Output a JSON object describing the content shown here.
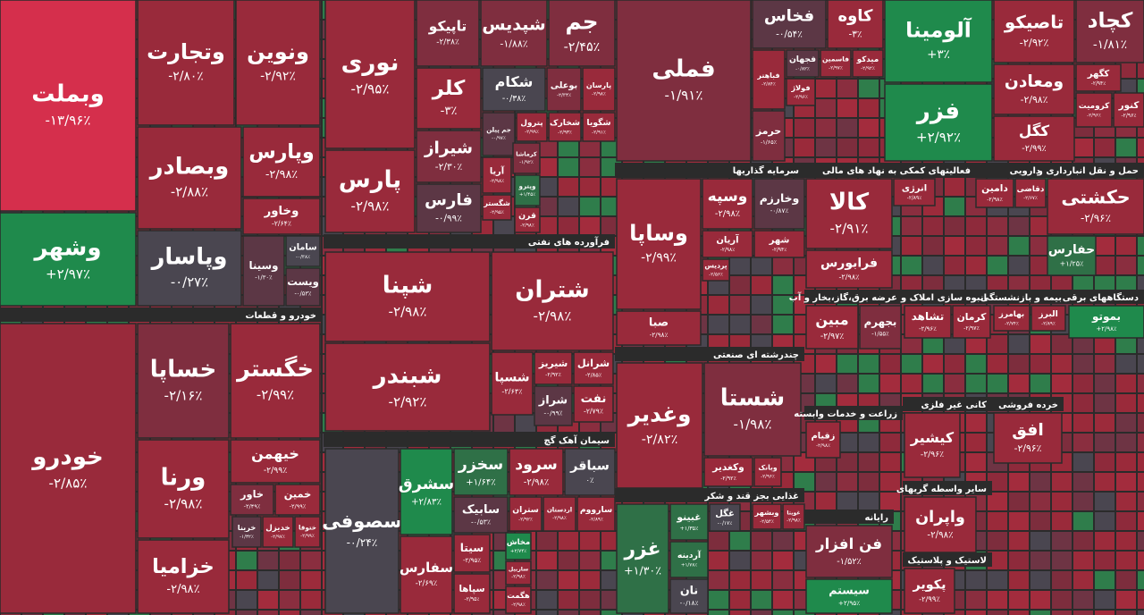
{
  "chart_data": {
    "type": "treemap",
    "groups": [
      {
        "categories": [
          "وبملت",
          "وشهر",
          "وتجارت",
          "ونوین",
          "وبصادر",
          "وپارس",
          "وخاور",
          "وپاسار",
          "وسینا",
          "سامان",
          "ویست"
        ],
        "values": [
          -13.96,
          2.97,
          -2.8,
          -2.92,
          -2.88,
          -2.98,
          -2.64,
          -0.27,
          -1.3,
          -0.38,
          -0.53
        ],
        "value_labels": [
          "-۱۳/۹۶٪",
          "+۲/۹۷٪",
          "-۲/۸۰٪",
          "-۲/۹۲٪",
          "-۲/۸۸٪",
          "-۲/۹۸٪",
          "-۲/۶۴٪",
          "-۰/۲۷٪",
          "-۱/۳۰٪",
          "-۰/۳۸٪",
          "-۰/۵۳٪"
        ]
      },
      {
        "name": "خودرو و قطعات",
        "categories": [
          "خودرو",
          "خساپا",
          "خگستر",
          "ورنا",
          "خزامیا",
          "خیهمن",
          "خاور",
          "خمین",
          "خرینا",
          "خدیزل",
          "ختوقا"
        ],
        "values": [
          -2.85,
          -2.16,
          -2.99,
          -2.98,
          -2.98,
          -2.99,
          -2.49,
          -2.99,
          -1.32,
          -2.97,
          -2.99
        ],
        "value_labels": [
          "-۲/۸۵٪",
          "-۲/۱۶٪",
          "-۲/۹۹٪",
          "-۲/۹۸٪",
          "-۲/۹۸٪",
          "-۲/۹۹٪",
          "-۲/۴۹٪",
          "-۲/۹۹٪",
          "-۱/۳۲٪",
          "-۲/۹۷٪",
          "-۲/۹۹٪"
        ]
      },
      {
        "categories": [
          "نوری",
          "پارس",
          "تاپیکو",
          "شپدیس",
          "جم",
          "کلر",
          "شیراز",
          "فارس",
          "شکام",
          "بوعلی",
          "پارسان",
          "جم پیلن",
          "پترول",
          "شخارک",
          "شگویا",
          "کرماشا",
          "آریا",
          "وپترو",
          "شگستر",
          "قرن"
        ],
        "values": [
          -2.95,
          -2.98,
          -2.38,
          -1.88,
          -2.45,
          -3,
          -2.3,
          -0.99,
          -0.38,
          -2.34,
          -2.98,
          -0.97,
          -2.99,
          -2.93,
          -2.91,
          -1.92,
          -2.98,
          1.45,
          -2.95,
          -2.98
        ],
        "value_labels": [
          "-۲/۹۵٪",
          "-۲/۹۸٪",
          "-۲/۳۸٪",
          "-۱/۸۸٪",
          "-۲/۴۵٪",
          "-۳٪",
          "-۲/۳۰٪",
          "-۰/۹۹٪",
          "-۰/۳۸٪",
          "-۲/۳۴٪",
          "-۲/۹۸٪",
          "-۰/۹۷٪",
          "-۲/۹۹٪",
          "-۲/۹۳٪",
          "-۲/۹۱٪",
          "-۱/۹۲٪",
          "-۲/۹۸٪",
          "+۱/۴۵٪",
          "-۲/۹۵٪",
          "-۲/۹۸٪"
        ]
      },
      {
        "name": "فرآورده های نفتی",
        "categories": [
          "شپنا",
          "شتران",
          "شبندر",
          "شسپا",
          "شیریز",
          "شرانل",
          "شراز",
          "نفت"
        ],
        "values": [
          -2.98,
          -2.98,
          -2.92,
          -2.64,
          -2.92,
          -2.85,
          -0.99,
          -2.79
        ],
        "value_labels": [
          "-۲/۹۸٪",
          "-۲/۹۸٪",
          "-۲/۹۲٪",
          "-۲/۶۴٪",
          "-۲/۹۲٪",
          "-۲/۸۵٪",
          "-۰/۹۹٪",
          "-۲/۷۹٪"
        ]
      },
      {
        "name": "سیمان آهک گچ",
        "categories": [
          "سصوفی",
          "سشرق",
          "سخزر",
          "سرود",
          "سباقر",
          "سفارس",
          "سابیک",
          "سیتا",
          "ستران",
          "اردستان",
          "سارووم",
          "سپاها",
          "مخاش",
          "ساربیل",
          "هگمت"
        ],
        "values": [
          -0.24,
          2.83,
          1.64,
          -2.98,
          0,
          -2.69,
          -0.53,
          -2.95,
          -2.92,
          -2.98,
          -2.89,
          -2.95,
          2.74,
          -2.98,
          -2.98
        ],
        "value_labels": [
          "-۰/۲۴٪",
          "+۲/۸۳٪",
          "+۱/۶۴٪",
          "-۲/۹۸٪",
          "۰٪",
          "-۲/۶۹٪",
          "-۰/۵۳٪",
          "-۲/۹۵٪",
          "-۲/۹۲٪",
          "-۲/۹۸٪",
          "-۲/۸۹٪",
          "-۲/۹۵٪",
          "+۲/۷۴٪",
          "-۲/۹۸٪",
          "-۲/۹۸٪"
        ]
      },
      {
        "categories": [
          "فملی",
          "فخاس",
          "کاوه",
          "فباهنر",
          "فجهان",
          "فاسمین",
          "میدکو",
          "فولاژ",
          "حرمز"
        ],
        "values": [
          -1.91,
          -0.54,
          -3,
          -2.84,
          -0.82,
          -2.97,
          -2.92,
          -2.96,
          -1.65
        ],
        "value_labels": [
          "-۱/۹۱٪",
          "-۰/۵۴٪",
          "-۳٪",
          "-۲/۸۴٪",
          "-۰/۸۲٪",
          "-۲/۹۷٪",
          "-۲/۹۲٪",
          "-۲/۹۶٪",
          "-۱/۶۵٪"
        ]
      },
      {
        "name": "سرمایه گذاریها",
        "categories": [
          "وساپا",
          "وسپه",
          "وخارزم",
          "آریان",
          "شهر",
          "پردیس",
          "صبا"
        ],
        "values": [
          -2.99,
          -2.98,
          -0.87,
          -2.98,
          -2.94,
          -2.56,
          -2.98
        ],
        "value_labels": [
          "-۲/۹۹٪",
          "-۲/۹۸٪",
          "-۰/۸۷٪",
          "-۲/۹۸٪",
          "-۲/۹۴٪",
          "-۲/۵۶٪",
          "-۲/۹۸٪"
        ]
      },
      {
        "name": "چندرشته ای صنعتی",
        "categories": [
          "وغدیر",
          "شستا",
          "وکغدیر",
          "وبانک"
        ],
        "values": [
          -2.82,
          -1.98,
          -2.92,
          -2.96
        ],
        "value_labels": [
          "-۲/۸۲٪",
          "-۱/۹۸٪",
          "-۲/۹۲٪",
          "-۲/۹۶٪"
        ]
      },
      {
        "name": "غذایی بجز قند و شکر",
        "categories": [
          "غزر",
          "غبینو",
          "غگل",
          "وبشهر",
          "غویتا",
          "آردینه",
          "نان"
        ],
        "values": [
          1.3,
          1.35,
          -0.17,
          -2.54,
          -2.98,
          1.78,
          -0.18
        ],
        "value_labels": [
          "+۱/۳۰٪",
          "+۱/۳۵٪",
          "-۰/۱۷٪",
          "-۲/۵۴٪",
          "-۲/۹۸٪",
          "+۱/۷۸٪",
          "-۰/۱۸٪"
        ]
      },
      {
        "name": "فعالیتهای کمکی به نهاد های مالی",
        "categories": [
          "کالا",
          "فرابورس",
          "انرژی"
        ],
        "values": [
          -2.91,
          -2.98,
          -2.89
        ],
        "value_labels": [
          "-۲/۹۱٪",
          "-۲/۹۸٪",
          "-۲/۸۹٪"
        ]
      },
      {
        "categories": [
          "آلومینا",
          "فزر",
          "تاصیکو",
          "کچاد",
          "ومعادن",
          "کگل",
          "کگهر",
          "کرومیت",
          "کنور"
        ],
        "values": [
          3,
          2.92,
          -2.92,
          -1.81,
          -2.98,
          -2.99,
          -2.94,
          -2.96,
          -2.96
        ],
        "value_labels": [
          "+۳٪",
          "+۲/۹۲٪",
          "-۲/۹۲٪",
          "-۱/۸۱٪",
          "-۲/۹۸٪",
          "-۲/۹۹٪",
          "-۲/۹۴٪",
          "-۲/۹۶٪",
          "-۲/۹۶٪"
        ]
      },
      {
        "name": "دارویی",
        "categories": [
          "دامین",
          "دقاضی"
        ],
        "values": [
          -2.98,
          -2.67
        ],
        "value_labels": [
          "-۲/۹۸٪",
          "-۲/۶۷٪"
        ]
      },
      {
        "name": "حمل و نقل انبارداری و",
        "categories": [
          "حکشتی",
          "حفارس"
        ],
        "values": [
          -2.96,
          1.25
        ],
        "value_labels": [
          "-۲/۹۶٪",
          "+۱/۲۵٪"
        ]
      },
      {
        "name": "عرضه برق،گاز،بخار و آب",
        "categories": [
          "مبین",
          "بجهرم"
        ],
        "values": [
          -2.97,
          -1.55
        ],
        "value_labels": [
          "-۲/۹۷٪",
          "-۱/۵۵٪"
        ]
      },
      {
        "name": "انبوه سازی املاک و",
        "categories": [
          "تشاهد",
          "کرمان"
        ],
        "values": [
          -2.96,
          -2.97
        ],
        "value_labels": [
          "-۲/۹۶٪",
          "-۲/۹۷٪"
        ]
      },
      {
        "name": "بیمه و بازنشستگی",
        "categories": [
          "بهامرز",
          "البرز"
        ],
        "values": [
          -2.74,
          -2.89
        ],
        "value_labels": [
          "-۲/۷۴٪",
          "-۲/۸۹٪"
        ]
      },
      {
        "name": "دستگاههای برقی",
        "categories": [
          "بموتو"
        ],
        "values": [
          2.98
        ],
        "value_labels": [
          "+۲/۹۸٪"
        ]
      },
      {
        "name": "کانی غیر فلزی",
        "categories": [
          "کیشیر"
        ],
        "values": [
          -2.96
        ],
        "value_labels": [
          "-۲/۹۶٪"
        ]
      },
      {
        "name": "خرده فروشی",
        "categories": [
          "افق"
        ],
        "values": [
          -2.96
        ],
        "value_labels": [
          "-۲/۹۶٪"
        ]
      },
      {
        "name": "زراعت و خدمات وابسته",
        "categories": [
          "زقیام"
        ],
        "values": [
          -2.98
        ],
        "value_labels": [
          "-۲/۹۸٪"
        ]
      },
      {
        "name": "رایانه",
        "categories": [
          "فن افزار",
          "سیستم"
        ],
        "values": [
          -1.52,
          2.95
        ],
        "value_labels": [
          "-۱/۵۲٪",
          "+۲/۹۵٪"
        ]
      },
      {
        "name": "سایر واسطه گریهای",
        "categories": [
          "واپران"
        ],
        "values": [
          -2.98
        ],
        "value_labels": [
          "-۲/۹۸٪"
        ]
      },
      {
        "name": "لاستیک و پلاستیک",
        "categories": [
          "پکویر"
        ],
        "values": [
          -2.99
        ],
        "value_labels": [
          "-۲/۹۹٪"
        ]
      }
    ]
  }
}
